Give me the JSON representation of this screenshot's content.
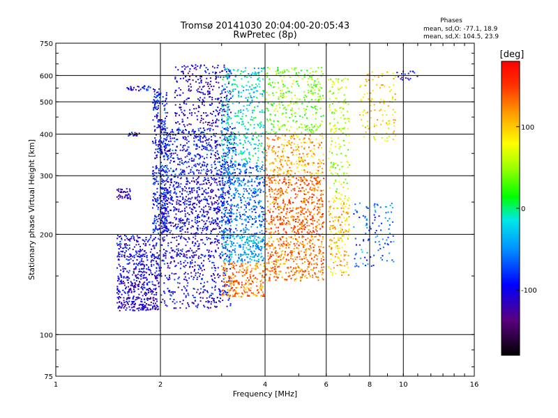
{
  "chart_data": {
    "type": "scatter",
    "title": "Tromsø 20141030 20:04:00-20:05:43",
    "subtitle": "RwPretec (8p)",
    "phase_box": {
      "heading": "Phases",
      "line_o": "mean, sd,O: -77.1, 18.9",
      "line_x": "mean, sd,X: 104.5, 23.9"
    },
    "xlabel": "Frequency [MHz]",
    "ylabel": "Stationary phase Virtual Height [km]",
    "x_scale": "log",
    "y_scale": "log",
    "xlim": [
      1,
      16
    ],
    "ylim": [
      75,
      750
    ],
    "x_ticks": [
      1,
      2,
      4,
      6,
      8,
      10,
      16
    ],
    "y_ticks": [
      75,
      100,
      200,
      300,
      400,
      500,
      600,
      750
    ],
    "x_gridlines": [
      2,
      4,
      6,
      8,
      10
    ],
    "y_gridlines": [
      100,
      200,
      300,
      400,
      500,
      600
    ],
    "grid": true,
    "colorbar": {
      "label": "[deg]",
      "range": [
        -180,
        180
      ],
      "ticks": [
        {
          "value": 100,
          "label": "100"
        },
        {
          "value": 0,
          "label": "0"
        },
        {
          "value": -100,
          "label": "-100"
        }
      ],
      "placement": "right"
    },
    "point_clusters": [
      {
        "f": [
          1.5,
          1.98
        ],
        "h": [
          118,
          145
        ],
        "phase": -110,
        "n": 260
      },
      {
        "f": [
          1.5,
          2.0
        ],
        "h": [
          145,
          200
        ],
        "phase": -100,
        "n": 320
      },
      {
        "f": [
          1.5,
          1.65
        ],
        "h": [
          255,
          275
        ],
        "phase": -115,
        "n": 40
      },
      {
        "f": [
          1.6,
          1.75
        ],
        "h": [
          395,
          405
        ],
        "phase": -105,
        "n": 20
      },
      {
        "f": [
          1.6,
          1.9
        ],
        "h": [
          540,
          560
        ],
        "phase": -100,
        "n": 30
      },
      {
        "f": [
          1.9,
          2.1
        ],
        "h": [
          200,
          560
        ],
        "phase": -90,
        "n": 380
      },
      {
        "f": [
          2.0,
          3.2
        ],
        "h": [
          120,
          200
        ],
        "phase": -100,
        "n": 460
      },
      {
        "f": [
          2.0,
          3.2
        ],
        "h": [
          200,
          300
        ],
        "phase": -100,
        "n": 620
      },
      {
        "f": [
          2.0,
          3.3
        ],
        "h": [
          300,
          420
        ],
        "phase": -90,
        "n": 480
      },
      {
        "f": [
          2.2,
          3.2
        ],
        "h": [
          420,
          650
        ],
        "phase": -110,
        "n": 300
      },
      {
        "f": [
          3.0,
          4.0
        ],
        "h": [
          130,
          165
        ],
        "phase": 125,
        "n": 240
      },
      {
        "f": [
          3.0,
          4.0
        ],
        "h": [
          165,
          200
        ],
        "phase": -40,
        "n": 220
      },
      {
        "f": [
          3.0,
          4.0
        ],
        "h": [
          200,
          330
        ],
        "phase": -60,
        "n": 420
      },
      {
        "f": [
          3.0,
          4.0
        ],
        "h": [
          330,
          640
        ],
        "phase": -20,
        "n": 360
      },
      {
        "f": [
          4.0,
          5.9
        ],
        "h": [
          145,
          200
        ],
        "phase": 130,
        "n": 380
      },
      {
        "f": [
          4.0,
          5.9
        ],
        "h": [
          200,
          300
        ],
        "phase": 135,
        "n": 520
      },
      {
        "f": [
          4.0,
          5.9
        ],
        "h": [
          300,
          400
        ],
        "phase": 110,
        "n": 260
      },
      {
        "f": [
          4.0,
          5.9
        ],
        "h": [
          400,
          640
        ],
        "phase": 40,
        "n": 300
      },
      {
        "f": [
          6.1,
          7.0
        ],
        "h": [
          150,
          260
        ],
        "phase": 100,
        "n": 180
      },
      {
        "f": [
          6.1,
          7.0
        ],
        "h": [
          260,
          600
        ],
        "phase": 60,
        "n": 160
      },
      {
        "f": [
          7.2,
          9.4
        ],
        "h": [
          160,
          250
        ],
        "phase": -60,
        "n": 110
      },
      {
        "f": [
          7.5,
          9.5
        ],
        "h": [
          380,
          620
        ],
        "phase": 90,
        "n": 120
      },
      {
        "f": [
          9.5,
          11.0
        ],
        "h": [
          580,
          620
        ],
        "phase": -100,
        "n": 18
      }
    ]
  }
}
